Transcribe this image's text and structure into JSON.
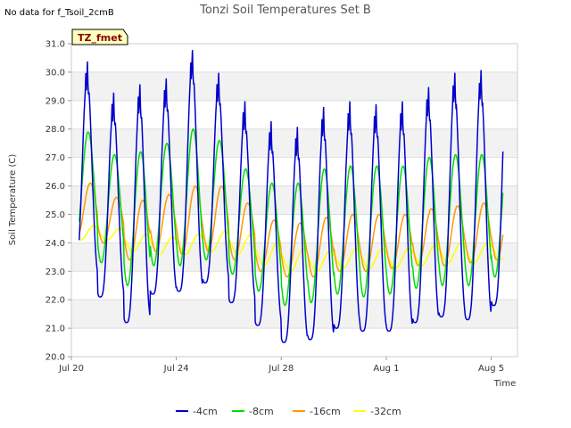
{
  "chart_data": {
    "type": "line",
    "title": "Tonzi Soil Temperatures Set B",
    "note": "No data for f_Tsoil_2cmB",
    "tag": "TZ_fmet",
    "xlabel": "Time",
    "ylabel": "Soil Temperature (C)",
    "ylim": [
      20.0,
      31.0
    ],
    "xlim_days": [
      "Jul 20",
      "Aug 6"
    ],
    "x_ticks": [
      "Jul 20",
      "Jul 24",
      "Jul 28",
      "Aug 1",
      "Aug 5"
    ],
    "y_ticks": [
      "20.0",
      "21.0",
      "22.0",
      "23.0",
      "24.0",
      "25.0",
      "26.0",
      "27.0",
      "28.0",
      "29.0",
      "30.0",
      "31.0"
    ],
    "grid": "horizontal bands",
    "legend_position": "bottom",
    "days": [
      "Jul 20",
      "Jul 21",
      "Jul 22",
      "Jul 23",
      "Jul 24",
      "Jul 25",
      "Jul 26",
      "Jul 27",
      "Jul 28",
      "Jul 29",
      "Jul 30",
      "Jul 31",
      "Aug 1",
      "Aug 2",
      "Aug 3",
      "Aug 4",
      "Aug 5"
    ],
    "series": [
      {
        "name": "-4cm",
        "color": "#0000cc",
        "daily_min": [
          22.8,
          22.1,
          21.2,
          22.2,
          22.3,
          22.6,
          21.9,
          21.1,
          20.5,
          20.6,
          21.0,
          20.9,
          20.9,
          21.2,
          21.4,
          21.3,
          21.8
        ],
        "daily_max": [
          29.9,
          28.8,
          29.1,
          29.3,
          30.3,
          29.5,
          28.5,
          27.8,
          27.6,
          28.3,
          28.5,
          28.4,
          28.5,
          29.0,
          29.5,
          29.6,
          29.8
        ]
      },
      {
        "name": "-8cm",
        "color": "#00dd00",
        "daily_min": [
          23.8,
          23.3,
          22.5,
          23.2,
          23.2,
          23.4,
          22.9,
          22.3,
          21.8,
          21.9,
          22.2,
          22.1,
          22.2,
          22.4,
          22.5,
          22.5,
          22.8
        ],
        "daily_max": [
          27.9,
          27.1,
          27.2,
          27.5,
          28.0,
          27.6,
          26.6,
          26.1,
          26.1,
          26.6,
          26.7,
          26.7,
          26.7,
          27.0,
          27.1,
          27.1,
          27.2
        ]
      },
      {
        "name": "-16cm",
        "color": "#ff9900",
        "daily_min": [
          24.2,
          24.0,
          23.4,
          23.7,
          23.6,
          23.7,
          23.4,
          23.0,
          22.8,
          22.8,
          23.0,
          23.0,
          23.1,
          23.2,
          23.2,
          23.3,
          23.4
        ],
        "daily_max": [
          26.1,
          25.6,
          25.5,
          25.7,
          26.0,
          26.0,
          25.4,
          24.8,
          24.7,
          24.9,
          25.0,
          25.0,
          25.0,
          25.2,
          25.3,
          25.4,
          25.5
        ]
      },
      {
        "name": "-32cm",
        "color": "#ffff00",
        "daily_min": [
          24.1,
          24.1,
          23.7,
          23.6,
          23.6,
          23.7,
          23.6,
          23.2,
          23.0,
          23.0,
          23.1,
          23.1,
          23.1,
          23.2,
          23.3,
          23.3,
          23.4
        ],
        "daily_max": [
          24.6,
          24.5,
          24.3,
          24.2,
          24.3,
          24.4,
          24.3,
          24.0,
          23.8,
          23.7,
          23.8,
          23.8,
          23.8,
          23.9,
          24.0,
          24.0,
          24.1
        ]
      }
    ]
  }
}
